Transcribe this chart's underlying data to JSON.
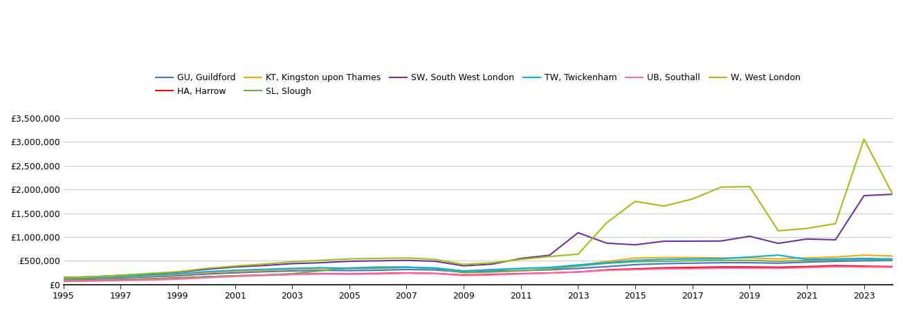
{
  "years": [
    1995,
    1996,
    1997,
    1998,
    1999,
    2000,
    2001,
    2002,
    2003,
    2004,
    2005,
    2006,
    2007,
    2008,
    2009,
    2010,
    2011,
    2012,
    2013,
    2014,
    2015,
    2016,
    2017,
    2018,
    2019,
    2020,
    2021,
    2022,
    2023,
    2024
  ],
  "series": [
    {
      "label": "GU, Guildford",
      "color": "#4472c4",
      "data": [
        115000,
        125000,
        142000,
        160000,
        182000,
        220000,
        245000,
        268000,
        285000,
        298000,
        292000,
        298000,
        315000,
        305000,
        258000,
        280000,
        292000,
        308000,
        338000,
        375000,
        418000,
        438000,
        448000,
        458000,
        458000,
        448000,
        470000,
        488000,
        498000,
        505000
      ]
    },
    {
      "label": "HA, Harrow",
      "color": "#ff0000",
      "data": [
        82000,
        92000,
        105000,
        118000,
        138000,
        162000,
        182000,
        198000,
        212000,
        228000,
        222000,
        232000,
        242000,
        232000,
        198000,
        212000,
        228000,
        242000,
        262000,
        308000,
        328000,
        348000,
        358000,
        368000,
        368000,
        362000,
        375000,
        395000,
        385000,
        375000
      ]
    },
    {
      "label": "KT, Kingston upon Thames",
      "color": "#ffa500",
      "data": [
        132000,
        145000,
        162000,
        182000,
        208000,
        248000,
        272000,
        292000,
        318000,
        338000,
        332000,
        338000,
        358000,
        342000,
        282000,
        312000,
        332000,
        352000,
        398000,
        485000,
        555000,
        568000,
        568000,
        558000,
        558000,
        538000,
        558000,
        578000,
        618000,
        598000
      ]
    },
    {
      "label": "SL, Slough",
      "color": "#70ad47",
      "data": [
        82000,
        90000,
        102000,
        115000,
        132000,
        162000,
        182000,
        198000,
        228000,
        288000,
        348000,
        368000,
        368000,
        332000,
        248000,
        262000,
        288000,
        322000,
        385000,
        445000,
        478000,
        488000,
        498000,
        508000,
        508000,
        488000,
        505000,
        518000,
        528000,
        518000
      ]
    },
    {
      "label": "SW, South West London",
      "color": "#7030a0",
      "data": [
        148000,
        162000,
        192000,
        222000,
        258000,
        318000,
        368000,
        398000,
        438000,
        458000,
        488000,
        498000,
        508000,
        488000,
        392000,
        428000,
        548000,
        615000,
        1090000,
        870000,
        835000,
        910000,
        912000,
        915000,
        1015000,
        865000,
        958000,
        940000,
        1870000,
        1900000
      ]
    },
    {
      "label": "TW, Twickenham",
      "color": "#00b0f0",
      "data": [
        138000,
        152000,
        172000,
        198000,
        228000,
        268000,
        298000,
        318000,
        338000,
        352000,
        342000,
        348000,
        362000,
        348000,
        282000,
        312000,
        338000,
        358000,
        412000,
        458000,
        508000,
        528000,
        538000,
        542000,
        578000,
        618000,
        528000,
        538000,
        548000,
        538000
      ]
    },
    {
      "label": "UB, Southall",
      "color": "#ff69b4",
      "data": [
        62000,
        70000,
        80000,
        92000,
        112000,
        142000,
        168000,
        188000,
        208000,
        222000,
        218000,
        222000,
        238000,
        228000,
        188000,
        202000,
        222000,
        238000,
        262000,
        298000,
        312000,
        328000,
        332000,
        342000,
        342000,
        338000,
        355000,
        372000,
        368000,
        362000
      ]
    },
    {
      "label": "W, West London",
      "color": "#9dc214",
      "data": [
        142000,
        162000,
        192000,
        232000,
        268000,
        338000,
        388000,
        428000,
        478000,
        508000,
        538000,
        548000,
        558000,
        528000,
        422000,
        458000,
        528000,
        588000,
        638000,
        1300000,
        1750000,
        1650000,
        1800000,
        2050000,
        2060000,
        1130000,
        1180000,
        1280000,
        3060000,
        1900000
      ]
    }
  ],
  "ylim": [
    0,
    3600000
  ],
  "yticks": [
    0,
    500000,
    1000000,
    1500000,
    2000000,
    2500000,
    3000000,
    3500000
  ],
  "background_color": "#ffffff",
  "grid_color": "#cccccc"
}
